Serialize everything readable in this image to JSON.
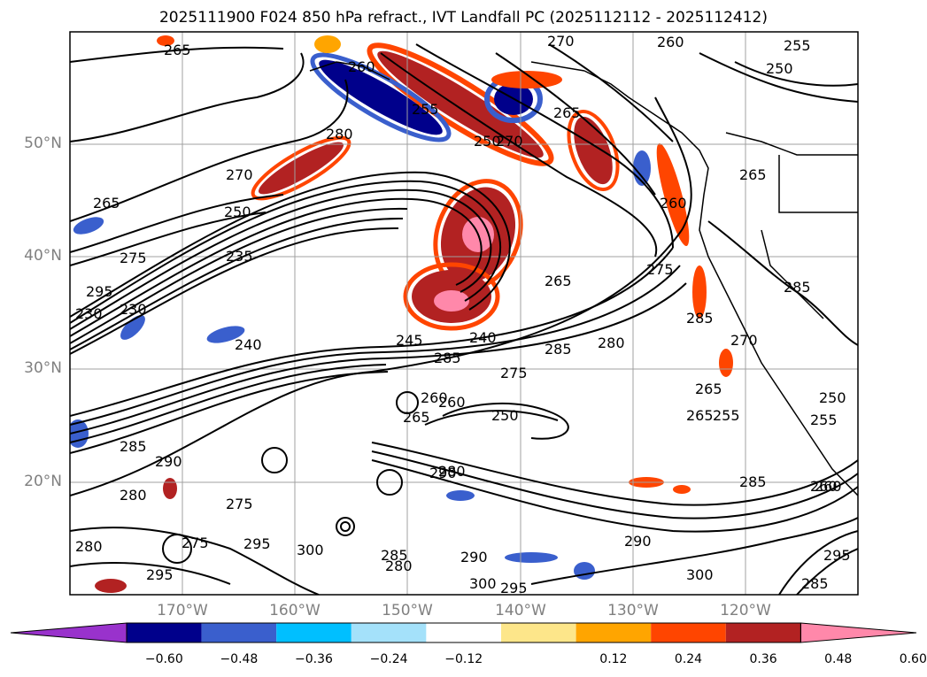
{
  "title": "2025111900 F024 850 hPa refract., IVT Landfall PC (2025112112 - 2025112412)",
  "map": {
    "lon_range": [
      -180,
      -110
    ],
    "lat_range": [
      10,
      60
    ],
    "lat_ticks": [
      "50°N",
      "40°N",
      "30°N",
      "20°N"
    ],
    "lon_ticks": [
      "170°W",
      "160°W",
      "150°W",
      "140°W",
      "130°W",
      "120°W"
    ],
    "grid": true,
    "coastline_color": "#000000",
    "contour_color": "#000000"
  },
  "contour_labels": [
    "265",
    "260",
    "255",
    "250",
    "270",
    "260",
    "255",
    "250",
    "280",
    "270",
    "265",
    "265",
    "260",
    "270",
    "265",
    "275",
    "235",
    "230",
    "250",
    "275",
    "265",
    "285",
    "295",
    "230",
    "240",
    "245",
    "240",
    "275",
    "285",
    "280",
    "285",
    "260",
    "270",
    "265",
    "285",
    "265",
    "255",
    "250",
    "285",
    "260",
    "255",
    "250",
    "285",
    "290",
    "280",
    "295",
    "280",
    "275",
    "275",
    "295",
    "280",
    "290",
    "300",
    "280",
    "285",
    "290",
    "290",
    "300",
    "295",
    "300",
    "285",
    "295",
    "260",
    "265",
    "260"
  ],
  "colorbar": {
    "ticks": [
      "−0.60",
      "−0.48",
      "−0.36",
      "−0.24",
      "−0.12",
      "0.12",
      "0.24",
      "0.36",
      "0.48",
      "0.60"
    ],
    "colors": [
      "#9932cc",
      "#00008b",
      "#3a5fcd",
      "#00bfff",
      "#a4e1fa",
      "#ffffff",
      "#fde68a",
      "#ffa500",
      "#ff4500",
      "#b22222",
      "#ff88aa"
    ],
    "extend": "both"
  }
}
